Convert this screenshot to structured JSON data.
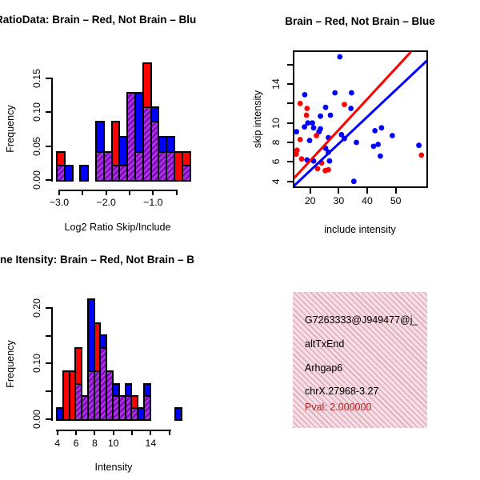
{
  "colors": {
    "red": "#FF0000",
    "blue": "#0000FF",
    "overlap_stripe_light": "#B43BE4",
    "overlap_stripe_dark": "#7E10BE",
    "info_box_bg": "#FFD9E8",
    "info_box_stripe": "rgba(150,148,130,0.5)",
    "pval_color": "#B22222",
    "axis_color": "#000000",
    "background": "#FFFFFF"
  },
  "info": {
    "lines": [
      "G7263333@J949477@j_",
      "altTxEnd",
      "Arhgap6",
      "chrX.27968-3.27"
    ],
    "pval": "Pval: 2.000000"
  },
  "chart_data": [
    {
      "id": "log2_ratio_histogram",
      "type": "bar",
      "title": "RatioData: Brain – Red, Not Brain – Blu",
      "xlabel": "Log2 Ratio Skip/Include",
      "ylabel": "Frequency",
      "bin_start": -3.07,
      "bin_width": 0.167,
      "series": [
        {
          "name": "Brain (red)",
          "color": "#FF0000",
          "values": [
            0.043,
            0,
            0,
            0,
            0,
            0.043,
            0.043,
            0.087,
            0.022,
            0.13,
            0.043,
            0.174,
            0.087,
            0.043,
            0.043,
            0.043,
            0.043
          ]
        },
        {
          "name": "Not Brain (blue)",
          "color": "#0000FF",
          "values": [
            0.022,
            0.022,
            0,
            0.022,
            0,
            0.087,
            0.043,
            0.022,
            0.065,
            0.13,
            0.13,
            0.109,
            0.109,
            0.065,
            0.065,
            0,
            0.022
          ]
        }
      ],
      "overlap_style": "purple hatched where red and blue histograms overlap",
      "x_ticks": [
        -3.0,
        -2.5,
        -2.0,
        -1.5,
        -1.0,
        -0.5
      ],
      "x_tick_labels": [
        "−3.0",
        "",
        "−2.0",
        "",
        "−1.0",
        ""
      ],
      "y_ticks": [
        0,
        0.05,
        0.1,
        0.15
      ],
      "y_tick_labels": [
        "0.00",
        "0.05",
        "0.10",
        "0.15"
      ],
      "xlim": [
        -3.15,
        -0.35
      ],
      "ylim": [
        0,
        0.18
      ],
      "grid": false
    },
    {
      "id": "intensity_scatter",
      "type": "scatter",
      "title": "Brain – Red, Not Brain – Blue",
      "xlabel": "include intensity",
      "ylabel": "skip intensity",
      "series": [
        {
          "name": "Brain (red)",
          "color": "#FF0000",
          "points": [
            [
              16.5,
              12.0
            ],
            [
              18.9,
              11.5
            ],
            [
              32.0,
              11.9
            ],
            [
              18.7,
              10.8
            ],
            [
              22.2,
              8.7
            ],
            [
              16.5,
              8.3
            ],
            [
              15.4,
              7.2
            ],
            [
              15.1,
              6.8
            ],
            [
              17.0,
              6.3
            ],
            [
              24.0,
              5.9
            ],
            [
              22.6,
              5.3
            ],
            [
              25.3,
              5.1
            ],
            [
              26.4,
              5.2
            ],
            [
              59.0,
              6.7
            ]
          ]
        },
        {
          "name": "Not Brain (blue)",
          "color": "#0000FF",
          "points": [
            [
              30.4,
              16.8
            ],
            [
              18.1,
              12.9
            ],
            [
              28.7,
              13.1
            ],
            [
              34.5,
              13.1
            ],
            [
              25.4,
              11.6
            ],
            [
              34.3,
              11.5
            ],
            [
              23.6,
              10.7
            ],
            [
              27.1,
              10.8
            ],
            [
              19.2,
              10.0
            ],
            [
              20.8,
              10.0
            ],
            [
              18.0,
              9.6
            ],
            [
              21.2,
              9.5
            ],
            [
              23.6,
              9.4
            ],
            [
              15.2,
              9.1
            ],
            [
              23.1,
              9.1
            ],
            [
              26.4,
              8.5
            ],
            [
              31.0,
              8.8
            ],
            [
              32.0,
              8.4
            ],
            [
              19.8,
              8.2
            ],
            [
              25.4,
              7.4
            ],
            [
              26.4,
              7.0
            ],
            [
              18.9,
              6.2
            ],
            [
              21.2,
              6.1
            ],
            [
              26.8,
              6.1
            ],
            [
              35.3,
              4.0
            ],
            [
              45.0,
              9.5
            ],
            [
              42.7,
              9.2
            ],
            [
              48.8,
              8.7
            ],
            [
              36.2,
              8.0
            ],
            [
              42.2,
              7.6
            ],
            [
              43.8,
              7.8
            ],
            [
              44.6,
              6.6
            ],
            [
              58.1,
              7.7
            ]
          ]
        }
      ],
      "lines": [
        {
          "name": "red-line",
          "color": "#FF0000",
          "from": [
            13.3,
            4.0
          ],
          "to": [
            55.3,
            17.3
          ]
        },
        {
          "name": "blue-line",
          "color": "#0000FF",
          "from": [
            14.2,
            3.5
          ],
          "to": [
            60.9,
            16.4
          ]
        }
      ],
      "x_ticks": [
        20,
        30,
        40,
        50
      ],
      "x_tick_labels": [
        "20",
        "30",
        "40",
        "50"
      ],
      "y_ticks": [
        4,
        6,
        8,
        10,
        12,
        14,
        16
      ],
      "y_tick_labels": [
        "4",
        "6",
        "8",
        "10",
        "",
        "14",
        ""
      ],
      "xlim": [
        14.2,
        60.9
      ],
      "ylim": [
        3.4,
        17.4
      ],
      "grid": false
    },
    {
      "id": "intensity_histogram",
      "type": "bar",
      "title": "ne Itensity: Brain – Red, Not Brain – B",
      "xlabel": "Intensity",
      "ylabel": "Frequency",
      "bin_start": 4.0,
      "bin_width": 0.667,
      "series": [
        {
          "name": "Brain (red)",
          "color": "#FF0000",
          "values": [
            0,
            0.087,
            0.087,
            0.13,
            0.043,
            0.087,
            0.174,
            0.13,
            0.087,
            0.043,
            0.043,
            0.043,
            0.043,
            0,
            0.043,
            0,
            0,
            0,
            0,
            0
          ]
        },
        {
          "name": "Not Brain (blue)",
          "color": "#0000FF",
          "values": [
            0.022,
            0,
            0,
            0.065,
            0.043,
            0.217,
            0.087,
            0.152,
            0.087,
            0.065,
            0.043,
            0.065,
            0.022,
            0.022,
            0.065,
            0,
            0,
            0,
            0,
            0.022
          ]
        }
      ],
      "overlap_style": "purple hatched where red and blue histograms overlap",
      "x_ticks": [
        4,
        6,
        8,
        10,
        12,
        14,
        16
      ],
      "x_tick_labels": [
        "4",
        "6",
        "8",
        "10",
        "",
        "14",
        ""
      ],
      "y_ticks": [
        0,
        0.05,
        0.1,
        0.15,
        0.2
      ],
      "y_tick_labels": [
        "0.00",
        "",
        "0.10",
        "",
        "0.20"
      ],
      "xlim": [
        3.8,
        17.5
      ],
      "ylim": [
        0,
        0.22
      ],
      "grid": false
    }
  ]
}
